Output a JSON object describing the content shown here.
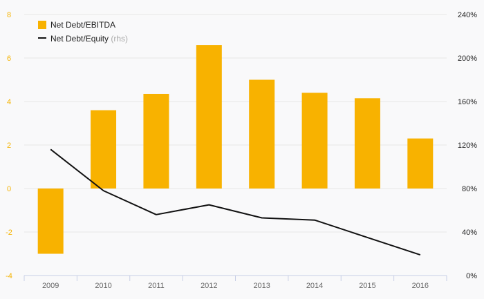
{
  "chart_data": {
    "type": "bar",
    "categories": [
      "2009",
      "2010",
      "2011",
      "2012",
      "2013",
      "2014",
      "2015",
      "2016"
    ],
    "series": [
      {
        "name": "Net Debt/EBITDA",
        "type": "bar",
        "axis": "left",
        "color": "#f8b200",
        "values": [
          -3.0,
          3.6,
          4.35,
          6.6,
          5.0,
          4.4,
          4.15,
          2.3
        ]
      },
      {
        "name": "Net Debt/Equity",
        "name_suffix": "(rhs)",
        "type": "line",
        "axis": "right",
        "color": "#111111",
        "values": [
          116,
          78,
          56,
          65,
          53,
          51,
          35,
          19
        ]
      }
    ],
    "y_left": {
      "range": [
        -4,
        8
      ],
      "ticks": [
        "-4",
        "-2",
        "0",
        "2",
        "4",
        "6",
        "8"
      ],
      "tick_values": [
        -4,
        -2,
        0,
        2,
        4,
        6,
        8
      ]
    },
    "y_right": {
      "range": [
        0,
        240
      ],
      "ticks": [
        "0%",
        "40%",
        "80%",
        "120%",
        "160%",
        "200%",
        "240%"
      ],
      "tick_values": [
        0,
        40,
        80,
        120,
        160,
        200,
        240
      ]
    },
    "grid": true,
    "legend": "top-left"
  }
}
